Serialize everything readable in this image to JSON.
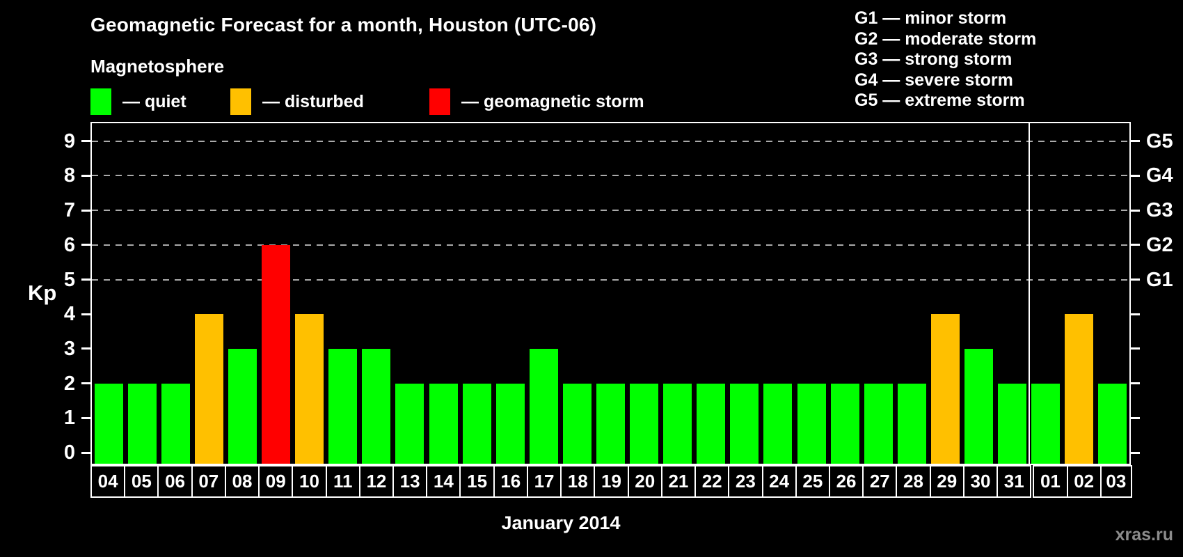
{
  "header": {
    "title": "Geomagnetic Forecast for a month, Houston (UTC-06)",
    "subtitle": "Magnetosphere"
  },
  "legend": {
    "items": [
      {
        "label": "— quiet",
        "status": "quiet",
        "color": "#00ff00"
      },
      {
        "label": "— disturbed",
        "status": "disturbed",
        "color": "#ffc000"
      },
      {
        "label": "— geomagnetic storm",
        "status": "storm",
        "color": "#ff0000"
      }
    ]
  },
  "storm_scale": {
    "lines": [
      "G1 — minor storm",
      "G2 — moderate storm",
      "G3 — strong storm",
      "G4 — severe storm",
      "G5 — extreme storm"
    ]
  },
  "watermark": "xras.ru",
  "chart_data": {
    "type": "bar",
    "title": "Geomagnetic Forecast for a month, Houston (UTC-06)",
    "xlabel": "January 2014",
    "ylabel": "Kp",
    "ylim": [
      0,
      9
    ],
    "yticks": [
      0,
      1,
      2,
      3,
      4,
      5,
      6,
      7,
      8,
      9
    ],
    "grid": "dashed horizontal lines at Kp 5-9 only",
    "legend_position": "top-left",
    "categories": [
      "04",
      "05",
      "06",
      "07",
      "08",
      "09",
      "10",
      "11",
      "12",
      "13",
      "14",
      "15",
      "16",
      "17",
      "18",
      "19",
      "20",
      "21",
      "22",
      "23",
      "24",
      "25",
      "26",
      "27",
      "28",
      "29",
      "30",
      "31",
      "01",
      "02",
      "03"
    ],
    "values": [
      2,
      2,
      2,
      4,
      3,
      6,
      4,
      3,
      3,
      2,
      2,
      2,
      2,
      3,
      2,
      2,
      2,
      2,
      2,
      2,
      2,
      2,
      2,
      2,
      2,
      4,
      3,
      2,
      2,
      4,
      2
    ],
    "statuses": [
      "quiet",
      "quiet",
      "quiet",
      "disturbed",
      "quiet",
      "storm",
      "disturbed",
      "quiet",
      "quiet",
      "quiet",
      "quiet",
      "quiet",
      "quiet",
      "quiet",
      "quiet",
      "quiet",
      "quiet",
      "quiet",
      "quiet",
      "quiet",
      "quiet",
      "quiet",
      "quiet",
      "quiet",
      "quiet",
      "disturbed",
      "quiet",
      "quiet",
      "quiet",
      "disturbed",
      "quiet"
    ],
    "status_colors": {
      "quiet": "#00ff00",
      "disturbed": "#ffc000",
      "storm": "#ff0000"
    },
    "right_axis_labels": [
      {
        "kp": 5,
        "label": "G1"
      },
      {
        "kp": 6,
        "label": "G2"
      },
      {
        "kp": 7,
        "label": "G3"
      },
      {
        "kp": 8,
        "label": "G4"
      },
      {
        "kp": 9,
        "label": "G5"
      }
    ],
    "gridlines_kp": [
      5,
      6,
      7,
      8,
      9
    ],
    "month_separator_after_index": 27
  },
  "colors": {
    "background": "#000000",
    "axis": "#ffffff",
    "grid": "#aaaaaa",
    "text": "#ffffff",
    "watermark": "#8c8c8c"
  }
}
